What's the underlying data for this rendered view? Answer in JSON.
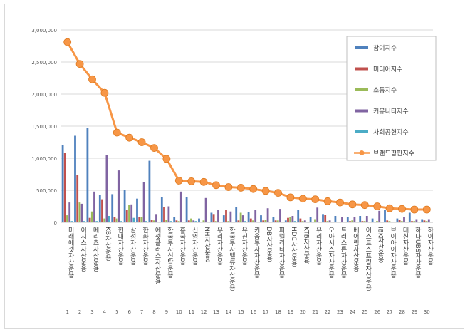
{
  "chart_data": {
    "type": "bar",
    "y_ticks": [
      "3,000,000",
      "2,500,000",
      "2,000,000",
      "1,500,000",
      "1,000,000",
      "500,000",
      "0"
    ],
    "ylim": [
      0,
      3000000
    ],
    "grid": true,
    "legend_position": "top-right",
    "categories": [
      "미래에셋자산운용",
      "이지스자산운용",
      "메리츠자산운용",
      "KB자산운용",
      "현대자산운용",
      "삼성자산운용",
      "한화자산운용",
      "에셋플러스자산운용",
      "한국투자신탁운용",
      "흥국자산운용",
      "신영자산운용",
      "NH자산운용",
      "우리자산운용",
      "한국투자밸류자산운용",
      "유진자산운용",
      "키움투자자산운용",
      "DB자산운용",
      "피델리티자산운용",
      "HDC자산운용",
      "KTB자산운용",
      "유리자산운용",
      "오아시스자산운용",
      "트러스톤자산운용",
      "베어링자산운용",
      "이스트스프링자산운용",
      "IBK자산운용",
      "브이아이자산운용",
      "대신자산운용",
      "하나UBS자산운용",
      "하이자산운용"
    ],
    "ranks": [
      "1",
      "2",
      "3",
      "4",
      "5",
      "6",
      "7",
      "8",
      "9",
      "10",
      "11",
      "12",
      "13",
      "14",
      "15",
      "16",
      "17",
      "18",
      "19",
      "20",
      "21",
      "22",
      "23",
      "24",
      "25",
      "26",
      "27",
      "28",
      "29",
      "30"
    ],
    "series": [
      {
        "name": "참여지수",
        "color": "#4f81bd",
        "values": [
          1200000,
          1350000,
          1470000,
          430000,
          440000,
          500000,
          370000,
          960000,
          400000,
          80000,
          400000,
          60000,
          150000,
          110000,
          240000,
          160000,
          110000,
          80000,
          30000,
          200000,
          80000,
          130000,
          100000,
          80000,
          100000,
          60000,
          200000,
          60000,
          150000,
          50000
        ]
      },
      {
        "name": "미디어지수",
        "color": "#c0504d",
        "values": [
          1080000,
          740000,
          70000,
          360000,
          80000,
          190000,
          80000,
          40000,
          240000,
          30000,
          30000,
          10000,
          130000,
          200000,
          30000,
          60000,
          30000,
          30000,
          70000,
          60000,
          10000,
          120000,
          10000,
          20000,
          20000,
          10000,
          30000,
          40000,
          20000,
          30000
        ]
      },
      {
        "name": "소통지수",
        "color": "#9bbb59",
        "values": [
          110000,
          310000,
          170000,
          60000,
          60000,
          270000,
          80000,
          30000,
          40000,
          20000,
          60000,
          30000,
          20000,
          20000,
          150000,
          30000,
          40000,
          30000,
          80000,
          20000,
          50000,
          20000,
          10000,
          30000,
          20000,
          20000,
          20000,
          20000,
          20000,
          20000
        ]
      },
      {
        "name": "커뮤니티지수",
        "color": "#8064a2",
        "values": [
          310000,
          290000,
          480000,
          1050000,
          810000,
          280000,
          630000,
          130000,
          250000,
          480000,
          30000,
          380000,
          190000,
          170000,
          110000,
          190000,
          220000,
          210000,
          100000,
          30000,
          230000,
          30000,
          80000,
          80000,
          100000,
          180000,
          10000,
          80000,
          50000,
          50000
        ]
      },
      {
        "name": "사회공헌지수",
        "color": "#4bacc6",
        "values": [
          20000,
          20000,
          20000,
          100000,
          20000,
          70000,
          20000,
          10000,
          20000,
          10000,
          20000,
          10000,
          10000,
          10000,
          20000,
          10000,
          10000,
          10000,
          20000,
          10000,
          10000,
          10000,
          10000,
          10000,
          10000,
          10000,
          10000,
          10000,
          10000,
          10000
        ]
      },
      {
        "name": "브랜드평판지수",
        "type": "line",
        "color": "#f79646",
        "values": [
          2810000,
          2470000,
          2230000,
          2020000,
          1400000,
          1320000,
          1250000,
          1160000,
          990000,
          650000,
          640000,
          630000,
          580000,
          550000,
          540000,
          520000,
          490000,
          460000,
          390000,
          370000,
          360000,
          330000,
          310000,
          280000,
          270000,
          250000,
          220000,
          210000,
          200000,
          200000
        ]
      }
    ]
  }
}
